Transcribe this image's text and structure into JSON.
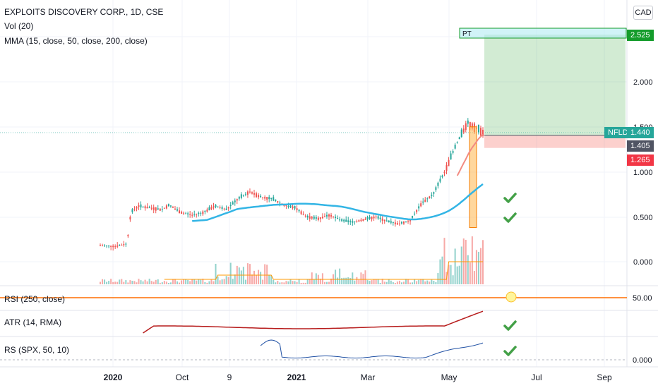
{
  "header": {
    "symbol_line": "EXPLOITS DISCOVERY CORP., 1D, CSE",
    "vol_label": "Vol (20)",
    "mma_label": "MMA (15, close, 50, close, 200, close)",
    "currency_button": "CAD"
  },
  "panes": {
    "rsi_label": "RSI (250, close)",
    "atr_label": "ATR (14, RMA)",
    "rs_label": "RS (SPX, 50, 10)"
  },
  "price_tags": {
    "pt_box_label": "PT",
    "target": "2.525",
    "symbol_tag": "NFLD",
    "last_price": "1.440",
    "entry": "1.405",
    "stop": "1.265",
    "rsi_value": "50.00",
    "rs_value": "0.000"
  },
  "colors": {
    "up": "#26a69a",
    "down": "#ef5350",
    "ma_blue": "#33b5e5",
    "ma_red": "#f28b82",
    "target_green": "#149c2b",
    "stop_red": "#f23645",
    "entry_gray": "#505463",
    "check_green": "#43a047",
    "rsi_line": "#ff6d00",
    "atr_line": "#b71c1c",
    "rs_line": "#1e4fa3",
    "highlight": "#ffb74d"
  },
  "chart_data": {
    "type": "candlestick",
    "title": "EXPLOITS DISCOVERY CORP., 1D, CSE",
    "x_ticks": [
      "2020",
      "Oct",
      "9",
      "2021",
      "Mar",
      "May",
      "Jul",
      "Sep"
    ],
    "y_ticks": [
      "2.000",
      "1.500",
      "1.000",
      "0.500",
      "0.000"
    ],
    "ylim": [
      -0.05,
      2.65
    ],
    "trade_levels": {
      "target": 2.525,
      "entry": 1.405,
      "stop": 1.265,
      "last": 1.44
    },
    "price_path": [
      {
        "x": 0.0,
        "close": 0.18
      },
      {
        "x": 0.04,
        "close": 0.17
      },
      {
        "x": 0.07,
        "close": 0.2
      },
      {
        "x": 0.08,
        "close": 0.55
      },
      {
        "x": 0.1,
        "close": 0.62
      },
      {
        "x": 0.13,
        "close": 0.6
      },
      {
        "x": 0.16,
        "close": 0.58
      },
      {
        "x": 0.18,
        "close": 0.63
      },
      {
        "x": 0.21,
        "close": 0.55
      },
      {
        "x": 0.24,
        "close": 0.52
      },
      {
        "x": 0.27,
        "close": 0.55
      },
      {
        "x": 0.3,
        "close": 0.62
      },
      {
        "x": 0.33,
        "close": 0.58
      },
      {
        "x": 0.36,
        "close": 0.7
      },
      {
        "x": 0.39,
        "close": 0.78
      },
      {
        "x": 0.42,
        "close": 0.72
      },
      {
        "x": 0.45,
        "close": 0.7
      },
      {
        "x": 0.48,
        "close": 0.63
      },
      {
        "x": 0.51,
        "close": 0.6
      },
      {
        "x": 0.54,
        "close": 0.5
      },
      {
        "x": 0.57,
        "close": 0.48
      },
      {
        "x": 0.6,
        "close": 0.52
      },
      {
        "x": 0.63,
        "close": 0.46
      },
      {
        "x": 0.66,
        "close": 0.44
      },
      {
        "x": 0.69,
        "close": 0.47
      },
      {
        "x": 0.72,
        "close": 0.5
      },
      {
        "x": 0.75,
        "close": 0.45
      },
      {
        "x": 0.78,
        "close": 0.42
      },
      {
        "x": 0.81,
        "close": 0.46
      },
      {
        "x": 0.84,
        "close": 0.65
      },
      {
        "x": 0.87,
        "close": 0.75
      },
      {
        "x": 0.9,
        "close": 1.0
      },
      {
        "x": 0.93,
        "close": 1.3
      },
      {
        "x": 0.96,
        "close": 1.55
      },
      {
        "x": 1.0,
        "close": 1.44
      }
    ],
    "checkmarks": 4
  }
}
